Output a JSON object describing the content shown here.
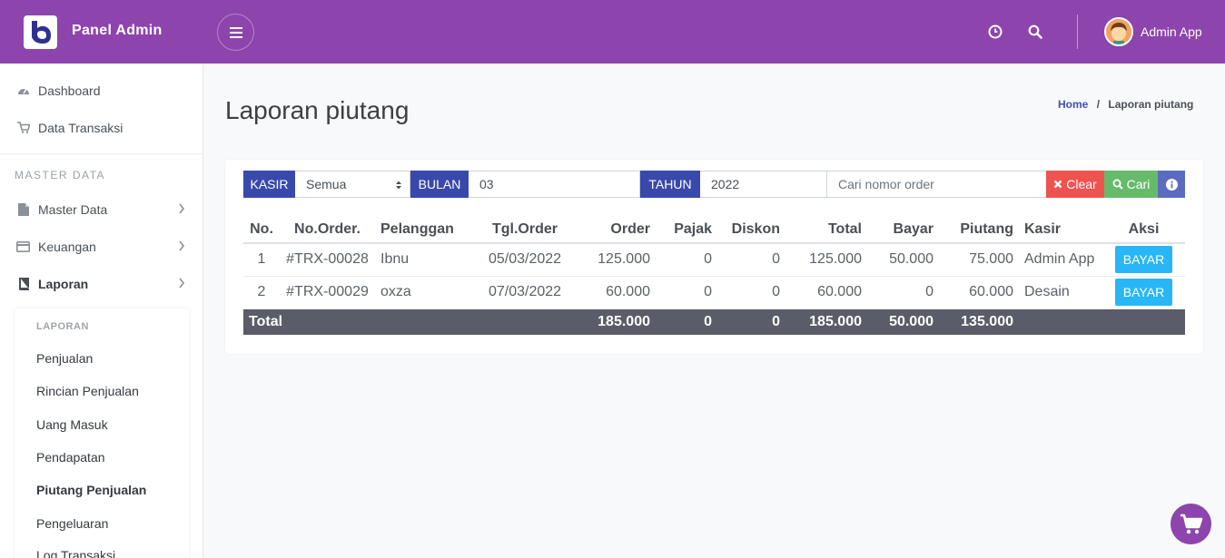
{
  "header": {
    "brand": "Panel Admin",
    "user_name": "Admin App",
    "icons": [
      "menu-icon",
      "clock-icon",
      "search-icon",
      "user-avatar"
    ],
    "accent_color": "#8e44ad"
  },
  "sidebar": {
    "items": [
      {
        "label": "Dashboard",
        "icon": "dashboard-icon"
      },
      {
        "label": "Data Transaksi",
        "icon": "cart-icon"
      }
    ],
    "section_header": "MASTER DATA",
    "groups": [
      {
        "label": "Master Data",
        "icon": "file-icon"
      },
      {
        "label": "Keuangan",
        "icon": "card-icon"
      },
      {
        "label": "Laporan",
        "icon": "book-icon"
      }
    ],
    "submenu": {
      "title": "LAPORAN",
      "items": [
        "Penjualan",
        "Rincian Penjualan",
        "Uang Masuk",
        "Pendapatan",
        "Piutang Penjualan",
        "Pengeluaran",
        "Log Transaksi"
      ],
      "active": "Piutang Penjualan"
    }
  },
  "page": {
    "title": "Laporan piutang",
    "breadcrumb": {
      "home": "Home",
      "sep": "/",
      "current": "Laporan piutang"
    }
  },
  "filter": {
    "kasir_label": "KASIR",
    "kasir_value": "Semua",
    "bulan_label": "BULAN",
    "bulan_value": "03",
    "tahun_label": "TAHUN",
    "tahun_value": "2022",
    "search_placeholder": "Cari nomor order",
    "clear_label": "Clear",
    "cari_label": "Cari"
  },
  "table": {
    "headers": [
      "No.",
      "No.Order.",
      "Pelanggan",
      "Tgl.Order",
      "Order",
      "Pajak",
      "Diskon",
      "Total",
      "Bayar",
      "Piutang",
      "Kasir",
      "Aksi"
    ],
    "rows": [
      {
        "no": "1",
        "order_no": "#TRX-00028",
        "pelanggan": "Ibnu",
        "tgl": "05/03/2022",
        "order": "125.000",
        "pajak": "0",
        "diskon": "0",
        "total": "125.000",
        "bayar": "50.000",
        "piutang": "75.000",
        "kasir": "Admin App",
        "aksi": "BAYAR"
      },
      {
        "no": "2",
        "order_no": "#TRX-00029",
        "pelanggan": "oxza",
        "tgl": "07/03/2022",
        "order": "60.000",
        "pajak": "0",
        "diskon": "0",
        "total": "60.000",
        "bayar": "0",
        "piutang": "60.000",
        "kasir": "Desain",
        "aksi": "BAYAR"
      }
    ],
    "total": {
      "label": "Total",
      "order": "185.000",
      "pajak": "0",
      "diskon": "0",
      "total": "185.000",
      "bayar": "50.000",
      "piutang": "135.000"
    }
  }
}
